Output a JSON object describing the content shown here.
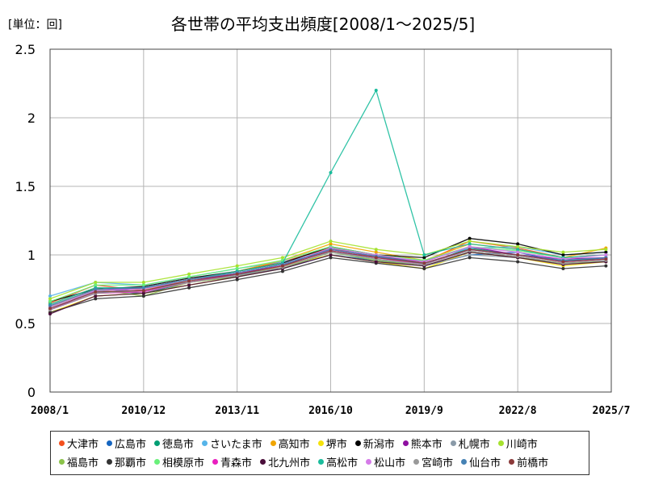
{
  "chart_data": {
    "type": "line",
    "title": "各世帯の平均支出頻度[2008/1～2025/5]",
    "unit_label": "[単位：回]",
    "x_range": [
      "2008-01",
      "2025-07"
    ],
    "ylim": [
      0,
      2.5
    ],
    "y_ticks": [
      "0",
      "0.5",
      "1",
      "1.5",
      "2",
      "2.5"
    ],
    "x_ticks": [
      {
        "label": "2008/1",
        "date": "2008-01"
      },
      {
        "label": "2010/12",
        "date": "2010-12"
      },
      {
        "label": "2013/11",
        "date": "2013-11"
      },
      {
        "label": "2016/10",
        "date": "2016-10"
      },
      {
        "label": "2019/9",
        "date": "2019-09"
      },
      {
        "label": "2022/8",
        "date": "2022-08"
      },
      {
        "label": "2025/7",
        "date": "2025-07"
      }
    ],
    "grid": true,
    "legend_position": "bottom",
    "series": [
      {
        "name": "大津市",
        "color": "#f4511e",
        "values": [
          0.65,
          0.78,
          0.74,
          0.82,
          0.88,
          0.95,
          1.05,
          0.98,
          0.95,
          1.1,
          1.05,
          0.98,
          1.0
        ]
      },
      {
        "name": "広島市",
        "color": "#1565c0",
        "values": [
          0.6,
          0.72,
          0.76,
          0.8,
          0.86,
          0.9,
          1.0,
          0.96,
          0.92,
          1.0,
          1.02,
          0.95,
          0.98
        ]
      },
      {
        "name": "徳島市",
        "color": "#009e73",
        "values": [
          0.62,
          0.74,
          0.72,
          0.8,
          0.85,
          0.92,
          1.05,
          1.0,
          0.93,
          1.05,
          1.0,
          0.96,
          0.97
        ]
      },
      {
        "name": "さいたま市",
        "color": "#56b4e9",
        "values": [
          0.7,
          0.8,
          0.78,
          0.84,
          0.9,
          0.95,
          1.02,
          0.98,
          0.96,
          1.05,
          1.06,
          1.0,
          1.02
        ]
      },
      {
        "name": "高知市",
        "color": "#f0a500",
        "values": [
          0.64,
          0.76,
          0.75,
          0.82,
          0.88,
          0.96,
          1.08,
          1.02,
          0.96,
          1.08,
          1.04,
          0.98,
          1.05
        ]
      },
      {
        "name": "堺市",
        "color": "#f5e20a",
        "values": [
          0.58,
          0.7,
          0.72,
          0.78,
          0.84,
          0.92,
          1.0,
          0.95,
          0.9,
          1.02,
          0.98,
          0.92,
          0.95
        ]
      },
      {
        "name": "新潟市",
        "color": "#000000",
        "values": [
          0.66,
          0.75,
          0.77,
          0.83,
          0.88,
          0.94,
          1.06,
          1.0,
          0.98,
          1.12,
          1.08,
          1.0,
          1.02
        ]
      },
      {
        "name": "熊本市",
        "color": "#8e0fa0",
        "values": [
          0.6,
          0.74,
          0.76,
          0.82,
          0.86,
          0.93,
          1.04,
          0.99,
          0.95,
          1.06,
          1.0,
          0.97,
          0.98
        ]
      },
      {
        "name": "札幌市",
        "color": "#8a9aa8",
        "values": [
          0.63,
          0.73,
          0.74,
          0.8,
          0.85,
          0.9,
          1.02,
          0.97,
          0.92,
          1.0,
          0.98,
          0.94,
          0.96
        ]
      },
      {
        "name": "川崎市",
        "color": "#a6e22e",
        "values": [
          0.68,
          0.8,
          0.8,
          0.86,
          0.92,
          0.98,
          1.1,
          1.04,
          1.0,
          1.1,
          1.06,
          1.02,
          1.04
        ]
      },
      {
        "name": "福島市",
        "color": "#8bc34a",
        "values": [
          0.62,
          0.75,
          0.7,
          0.8,
          0.84,
          0.9,
          1.02,
          0.96,
          0.92,
          1.02,
          0.98,
          0.94,
          0.95
        ]
      },
      {
        "name": "那覇市",
        "color": "#333333",
        "values": [
          0.58,
          0.68,
          0.7,
          0.76,
          0.82,
          0.88,
          0.98,
          0.94,
          0.9,
          0.98,
          0.95,
          0.9,
          0.92
        ]
      },
      {
        "name": "相模原市",
        "color": "#69f07a",
        "values": [
          0.66,
          0.78,
          0.78,
          0.84,
          0.9,
          0.96,
          1.06,
          1.0,
          0.96,
          1.06,
          1.03,
          0.98,
          1.0
        ]
      },
      {
        "name": "青森市",
        "color": "#e91ebf",
        "values": [
          0.6,
          0.72,
          0.73,
          0.8,
          0.86,
          0.92,
          1.03,
          0.98,
          0.93,
          1.04,
          1.0,
          0.95,
          0.97
        ]
      },
      {
        "name": "北九州市",
        "color": "#4a0e3a",
        "values": [
          0.57,
          0.7,
          0.72,
          0.78,
          0.84,
          0.9,
          1.0,
          0.95,
          0.92,
          1.02,
          0.98,
          0.93,
          0.95
        ]
      },
      {
        "name": "高松市",
        "color": "#1abc9c",
        "values": [
          0.64,
          0.76,
          0.76,
          0.82,
          0.88,
          0.94,
          1.6,
          2.2,
          1.0,
          1.08,
          1.04,
          0.98,
          1.0
        ]
      },
      {
        "name": "松山市",
        "color": "#d57be8",
        "values": [
          0.62,
          0.74,
          0.75,
          0.82,
          0.87,
          0.93,
          1.05,
          1.0,
          0.95,
          1.06,
          1.02,
          0.97,
          1.0
        ]
      },
      {
        "name": "宮崎市",
        "color": "#999999",
        "values": [
          0.6,
          0.72,
          0.74,
          0.8,
          0.85,
          0.91,
          1.02,
          0.97,
          0.93,
          1.03,
          0.99,
          0.94,
          0.96
        ]
      },
      {
        "name": "仙台市",
        "color": "#4682b4",
        "values": [
          0.63,
          0.75,
          0.76,
          0.82,
          0.87,
          0.93,
          1.04,
          0.99,
          0.94,
          1.04,
          1.0,
          0.96,
          0.98
        ]
      },
      {
        "name": "前橋市",
        "color": "#8b3a3a",
        "values": [
          0.61,
          0.73,
          0.74,
          0.81,
          0.86,
          0.92,
          1.03,
          0.98,
          0.94,
          1.04,
          1.0,
          0.95,
          0.97
        ]
      }
    ],
    "x": [
      "2008-01",
      "2009-06",
      "2010-12",
      "2012-05",
      "2013-11",
      "2015-04",
      "2016-10",
      "2018-03",
      "2019-09",
      "2021-02",
      "2022-08",
      "2024-01",
      "2025-05"
    ]
  }
}
